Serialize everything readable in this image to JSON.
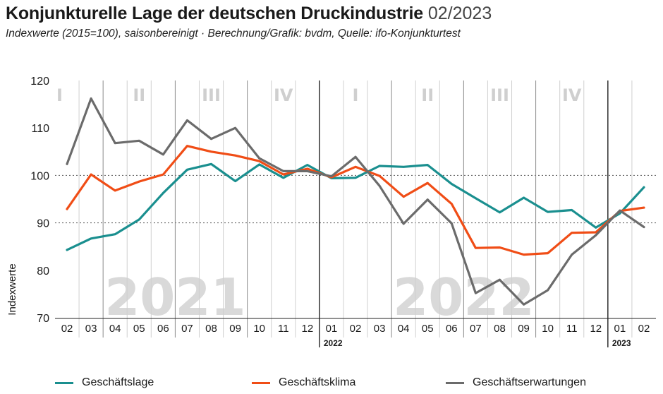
{
  "header": {
    "title": "Konjunkturelle Lage der deutschen Druckindustrie",
    "title_date": "02/2023",
    "subtitle": "Indexwerte (2015=100), saisonbereinigt · Berechnung/Grafik: bvdm, Quelle: ifo-Konjunkturtest"
  },
  "colors": {
    "geschaeftslage": "#1a8f8f",
    "geschaeftsklima": "#f04d16",
    "geschaeftserwartungen": "#6b6b6b",
    "quarter_label": "#cfcfcf",
    "year_watermark": "#d9d9d9",
    "grid": "#c8c8c8"
  },
  "chart_data": {
    "type": "line",
    "title": "Konjunkturelle Lage der deutschen Druckindustrie",
    "ylabel": "Indexwerte",
    "ylim": [
      70,
      120
    ],
    "yticks": [
      70,
      80,
      90,
      100,
      110,
      120
    ],
    "grid": "horizontal dashed at 90 and 100",
    "x": [
      "2021-02",
      "2021-03",
      "2021-04",
      "2021-05",
      "2021-06",
      "2021-07",
      "2021-08",
      "2021-09",
      "2021-10",
      "2021-11",
      "2021-12",
      "2022-01",
      "2022-02",
      "2022-03",
      "2022-04",
      "2022-05",
      "2022-06",
      "2022-07",
      "2022-08",
      "2022-09",
      "2022-10",
      "2022-11",
      "2022-12",
      "2023-01",
      "2023-02"
    ],
    "tick_labels": [
      "02",
      "03",
      "04",
      "05",
      "06",
      "07",
      "08",
      "09",
      "10",
      "11",
      "12",
      "01",
      "02",
      "03",
      "04",
      "05",
      "06",
      "07",
      "08",
      "09",
      "10",
      "11",
      "12",
      "01",
      "02"
    ],
    "year_markers": [
      {
        "label": "2022",
        "index": 11
      },
      {
        "label": "2023",
        "index": 23
      }
    ],
    "quarter_labels": [
      {
        "label": "I",
        "start": 0,
        "end": 1
      },
      {
        "label": "II",
        "start": 2,
        "end": 4
      },
      {
        "label": "III",
        "start": 5,
        "end": 7
      },
      {
        "label": "IV",
        "start": 8,
        "end": 10
      },
      {
        "label": "I",
        "start": 11,
        "end": 13
      },
      {
        "label": "II",
        "start": 14,
        "end": 16
      },
      {
        "label": "III",
        "start": 17,
        "end": 19
      },
      {
        "label": "IV",
        "start": 20,
        "end": 22
      }
    ],
    "year_watermarks": [
      {
        "label": "2021",
        "center_index": 5
      },
      {
        "label": "2022",
        "center_index": 17
      }
    ],
    "series": [
      {
        "name": "Geschäftslage",
        "color": "#1a8f8f",
        "values": [
          84.3,
          86.7,
          87.6,
          90.7,
          96.3,
          101.2,
          102.4,
          98.8,
          102.3,
          99.5,
          102.2,
          99.4,
          99.5,
          102.0,
          101.8,
          102.2,
          98.2,
          95.2,
          92.2,
          95.3,
          92.3,
          92.7,
          89.0,
          92.0,
          97.5
        ]
      },
      {
        "name": "Geschäftsklima",
        "color": "#f04d16",
        "values": [
          92.9,
          100.2,
          96.8,
          98.7,
          100.2,
          106.2,
          105.0,
          104.2,
          103.0,
          100.2,
          101.4,
          99.6,
          101.8,
          99.9,
          95.5,
          98.4,
          94.0,
          84.7,
          84.8,
          83.3,
          83.6,
          87.9,
          88.0,
          92.5,
          93.2
        ]
      },
      {
        "name": "Geschäftserwartungen",
        "color": "#6b6b6b",
        "values": [
          102.4,
          116.2,
          106.8,
          107.3,
          104.4,
          111.6,
          107.7,
          110.0,
          103.6,
          100.9,
          100.9,
          99.8,
          103.9,
          97.8,
          89.8,
          94.9,
          89.9,
          75.2,
          78.0,
          72.8,
          75.8,
          83.3,
          87.4,
          92.6,
          89.1
        ]
      }
    ]
  }
}
